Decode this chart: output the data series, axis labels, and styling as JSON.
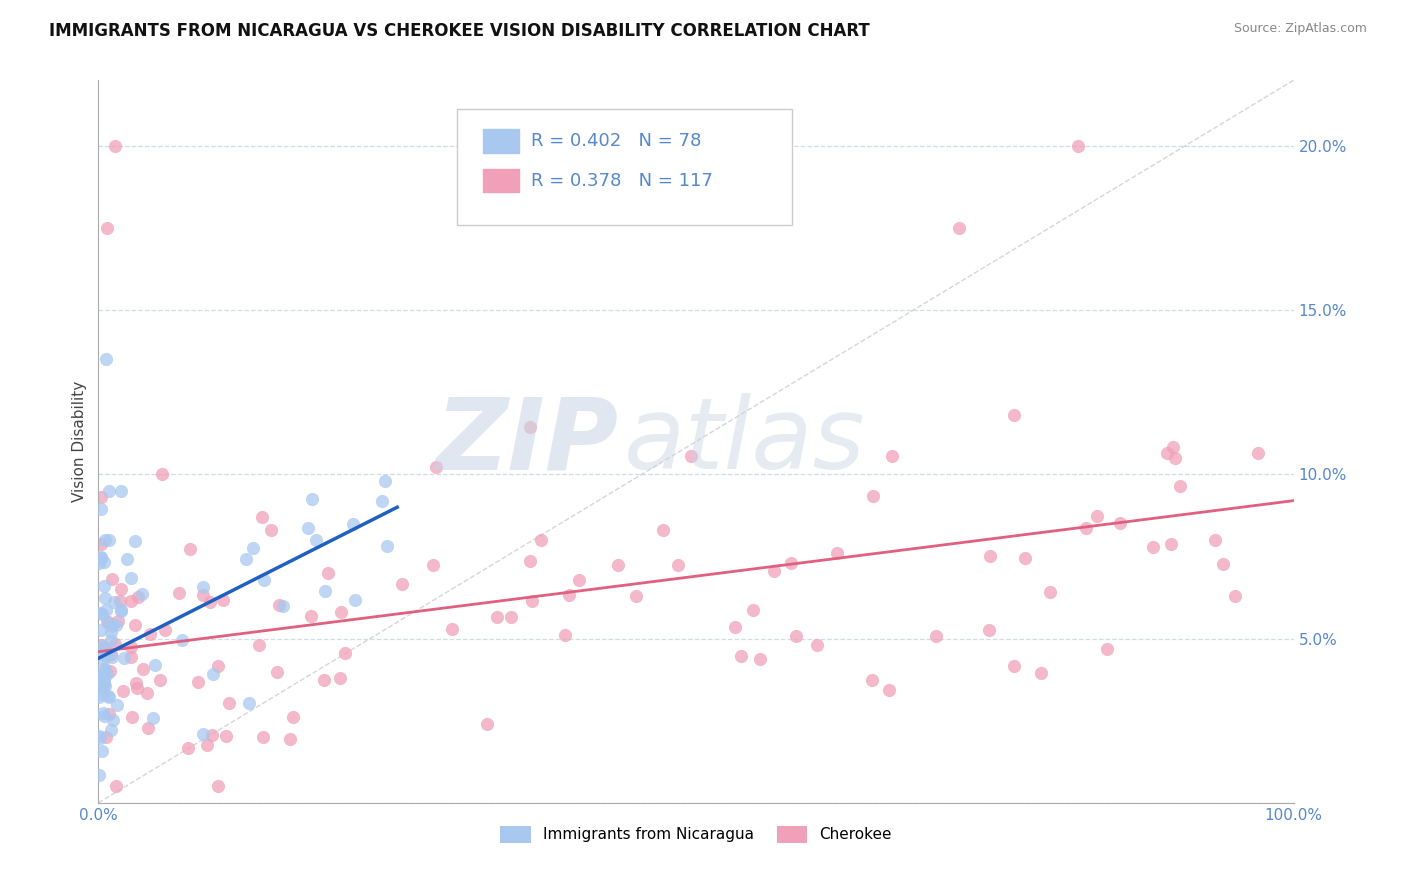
{
  "title": "IMMIGRANTS FROM NICARAGUA VS CHEROKEE VISION DISABILITY CORRELATION CHART",
  "source": "Source: ZipAtlas.com",
  "ylabel": "Vision Disability",
  "xlim": [
    0,
    1.0
  ],
  "ylim": [
    0,
    0.22
  ],
  "yticks": [
    0.0,
    0.05,
    0.1,
    0.15,
    0.2
  ],
  "yticklabels": [
    "",
    "5.0%",
    "10.0%",
    "15.0%",
    "20.0%"
  ],
  "xticklabels_left": "0.0%",
  "xticklabels_right": "100.0%",
  "legend_r1": "R = 0.402",
  "legend_n1": "N = 78",
  "legend_r2": "R = 0.378",
  "legend_n2": "N = 117",
  "color_blue": "#a8c8f0",
  "color_pink": "#f0a0b8",
  "color_blue_line": "#2060c0",
  "color_pink_line": "#e06080",
  "color_diagonal": "#cccccc",
  "title_fontsize": 12,
  "label_fontsize": 11,
  "tick_fontsize": 11,
  "tick_color": "#5588cc",
  "background_color": "#ffffff",
  "grid_color": "#d0dce8",
  "watermark_zip": "ZIP",
  "watermark_atlas": "atlas",
  "blue_label": "Immigrants from Nicaragua",
  "pink_label": "Cherokee",
  "blue_line_x0": 0.0,
  "blue_line_y0": 0.044,
  "blue_line_x1": 0.25,
  "blue_line_y1": 0.09,
  "pink_line_x0": 0.0,
  "pink_line_y0": 0.046,
  "pink_line_x1": 1.0,
  "pink_line_y1": 0.092
}
